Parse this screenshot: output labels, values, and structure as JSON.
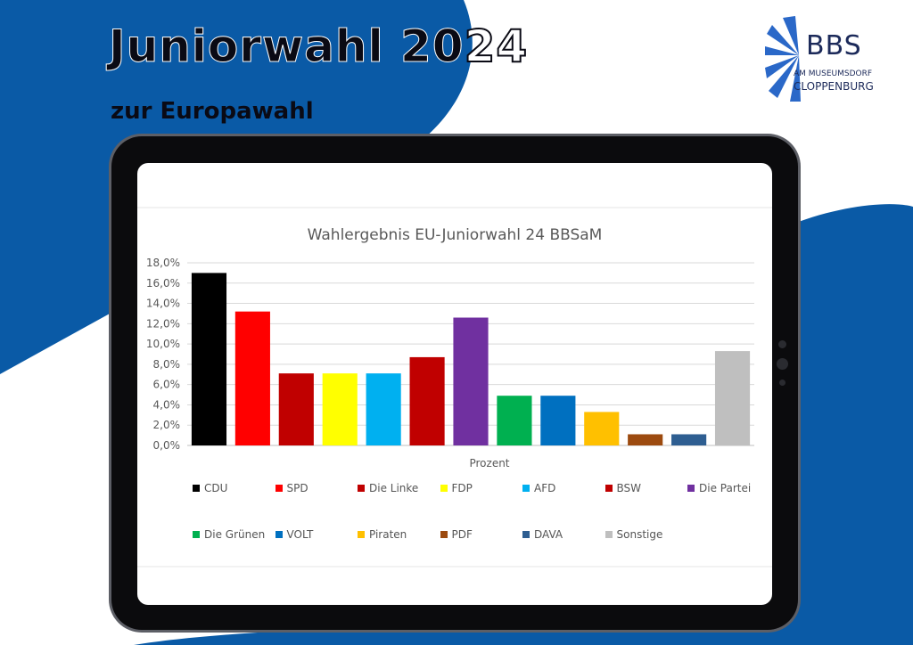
{
  "poster": {
    "headline": "Juniorwahl 20",
    "headline_outline": "24",
    "subline": "zur Europawahl"
  },
  "logo": {
    "big": "BBS",
    "small_line1": "AM MUSEUMSDORF",
    "small_line2": "CLOPPENBURG"
  },
  "colors": {
    "blue_background": "#0a5aa6",
    "tablet_frame": "#0b0b0d"
  },
  "chart_data": {
    "type": "bar",
    "title": "Wahlergebnis EU-Juniorwahl 24 BBSaM",
    "xlabel": "Prozent",
    "ylabel": "",
    "ylim": [
      0,
      18
    ],
    "ytick_step": 2,
    "ytick_labels": [
      "0,0%",
      "2,0%",
      "4,0%",
      "6,0%",
      "8,0%",
      "10,0%",
      "12,0%",
      "14,0%",
      "16,0%",
      "18,0%"
    ],
    "grid": true,
    "legend_position": "bottom",
    "categories": [
      "CDU",
      "SPD",
      "Die Linke",
      "FDP",
      "AFD",
      "BSW",
      "Die Partei",
      "Die Grünen",
      "VOLT",
      "Piraten",
      "PDF",
      "DAVA",
      "Sonstige"
    ],
    "values": [
      17.0,
      13.2,
      7.1,
      7.1,
      7.1,
      8.7,
      12.6,
      4.9,
      4.9,
      3.3,
      1.1,
      1.1,
      9.3
    ],
    "colors": [
      "#000000",
      "#ff0000",
      "#c00000",
      "#ffff00",
      "#00b0f0",
      "#c00000",
      "#7030a0",
      "#00b050",
      "#0070c0",
      "#ffc000",
      "#9c4a0f",
      "#2e5e91",
      "#bfbfbf"
    ]
  }
}
